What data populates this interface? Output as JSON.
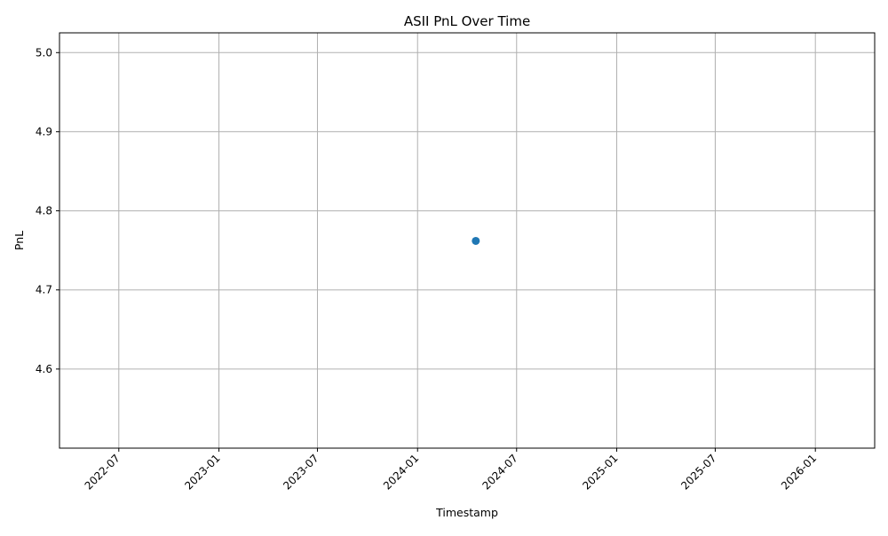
{
  "chart_data": {
    "type": "scatter",
    "title": "ASII PnL Over Time",
    "xlabel": "Timestamp",
    "ylabel": "PnL",
    "x_axis_type": "date",
    "xlim": [
      "2022-03-14",
      "2026-04-20"
    ],
    "ylim": [
      4.5,
      5.025
    ],
    "x_ticks": [
      "2022-07",
      "2023-01",
      "2023-07",
      "2024-01",
      "2024-07",
      "2025-01",
      "2025-07",
      "2026-01"
    ],
    "y_ticks": [
      "4.6",
      "4.7",
      "4.8",
      "4.9",
      "5.0"
    ],
    "grid": true,
    "series": [
      {
        "color": "#1f77b4",
        "marker": "circle",
        "points": [
          {
            "x": "2024-04-17",
            "y": 4.762
          }
        ]
      }
    ]
  }
}
